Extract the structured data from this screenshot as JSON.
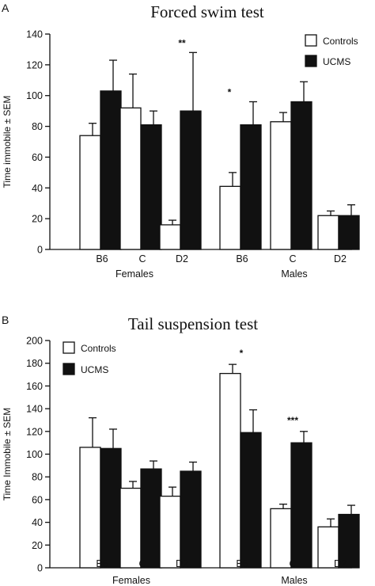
{
  "chart_data": [
    {
      "panel_label": "A",
      "type": "bar",
      "title": "Forced swim test",
      "ylabel": "Time immobile ± SEM",
      "ylim": [
        0,
        140
      ],
      "yticks": [
        0,
        20,
        40,
        60,
        80,
        100,
        120,
        140
      ],
      "categories": [
        "B6",
        "C",
        "D2",
        "B6",
        "C",
        "D2"
      ],
      "groups": [
        {
          "label": "Females",
          "categories": [
            "B6",
            "C",
            "D2"
          ]
        },
        {
          "label": "Males",
          "categories": [
            "B6",
            "C",
            "D2"
          ]
        }
      ],
      "series": [
        {
          "name": "Controls",
          "color": "#ffffff",
          "values": [
            74,
            92,
            16,
            41,
            83,
            22
          ],
          "errors": [
            8,
            22,
            3,
            9,
            6,
            3
          ]
        },
        {
          "name": "UCMS",
          "color": "#111111",
          "values": [
            103,
            81,
            90,
            81,
            96,
            22
          ],
          "errors": [
            20,
            9,
            38,
            15,
            13,
            7
          ]
        }
      ],
      "annotations": [
        {
          "text": "**",
          "category_index": 2
        },
        {
          "text": "*",
          "category_index": 3
        }
      ],
      "legend": "top-right"
    },
    {
      "panel_label": "B",
      "type": "bar",
      "title": "Tail suspension test",
      "ylabel": "Time Immobile ± SEM",
      "ylim": [
        0,
        200
      ],
      "yticks": [
        0,
        20,
        40,
        60,
        80,
        100,
        120,
        140,
        160,
        180,
        200
      ],
      "categories": [
        "B6",
        "C",
        "D2",
        "B6",
        "C",
        "D2"
      ],
      "groups": [
        {
          "label": "Females",
          "categories": [
            "B6",
            "C",
            "D2"
          ]
        },
        {
          "label": "Males",
          "categories": [
            "B6",
            "C",
            "D2"
          ]
        }
      ],
      "series": [
        {
          "name": "Controls",
          "color": "#ffffff",
          "values": [
            106,
            70,
            63,
            171,
            52,
            36
          ],
          "errors": [
            26,
            6,
            8,
            8,
            4,
            7
          ]
        },
        {
          "name": "UCMS",
          "color": "#111111",
          "values": [
            105,
            87,
            85,
            119,
            110,
            47
          ],
          "errors": [
            17,
            7,
            8,
            20,
            10,
            8
          ]
        }
      ],
      "annotations": [
        {
          "text": "*",
          "category_index": 3
        },
        {
          "text": "***",
          "category_index": 4
        }
      ],
      "legend": "top-left"
    }
  ]
}
